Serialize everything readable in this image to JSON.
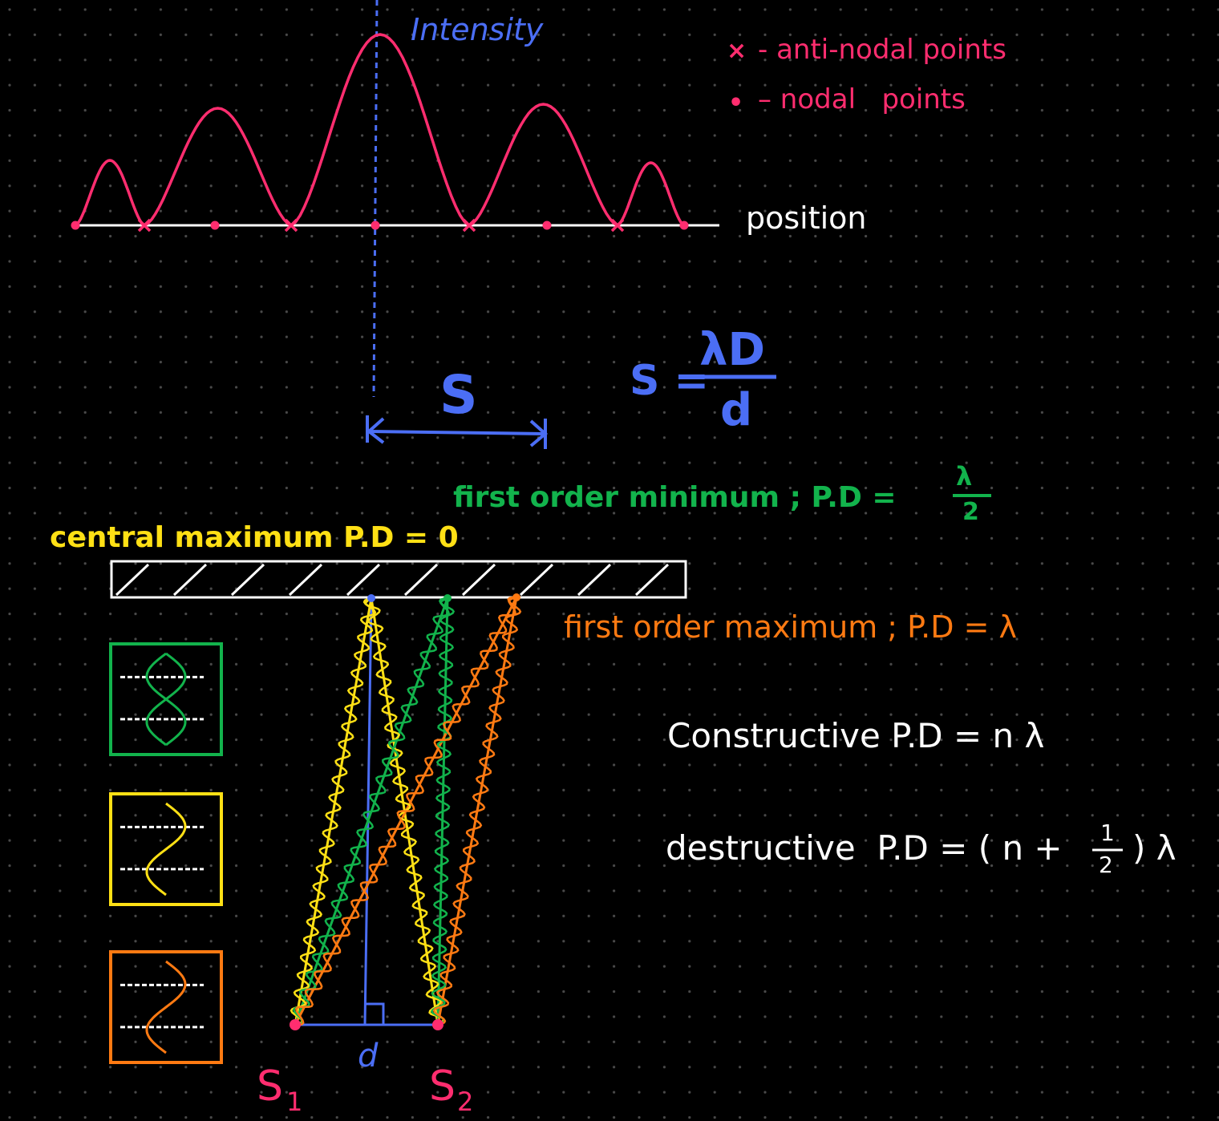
{
  "colors": {
    "background": "#000000",
    "grid_dot": "#4a4a4a",
    "pink": "#ff2d6f",
    "blue": "#4b6ef5",
    "white": "#ffffff",
    "yellow": "#ffe015",
    "green": "#12b34c",
    "orange": "#ff7a12"
  },
  "intensity_graph": {
    "axis_label": "Intensity",
    "position_label": "position",
    "legend": {
      "antinodal_marker": "×",
      "antinodal_text": "- anti-nodal points",
      "nodal_marker": "•",
      "nodal_text": "– nodal   points"
    }
  },
  "fringe_spacing": {
    "symbol": "S",
    "formula_lhs": "S =",
    "formula_numerator": "λD",
    "formula_denominator": "d"
  },
  "labels": {
    "first_order_minimum": "first order minimum ; P.D =",
    "first_order_minimum_num": "λ",
    "first_order_minimum_den": "2",
    "central_maximum": "central maximum P.D = 0",
    "first_order_maximum": "first order maximum ; P.D = λ",
    "constructive": "Constructive P.D = n λ",
    "destructive_prefix": "destructive  P.D = ( n +",
    "destructive_num": "1",
    "destructive_den": "2",
    "destructive_suffix": ") λ",
    "source1": "S",
    "source1_sub": "1",
    "source2": "S",
    "source2_sub": "2",
    "slit_separation": "d"
  },
  "phase_boxes": [
    {
      "name": "green-phase-box",
      "color": "green",
      "phase": "antiphase"
    },
    {
      "name": "yellow-phase-box",
      "color": "yellow",
      "phase": "in-phase"
    },
    {
      "name": "orange-phase-box",
      "color": "orange",
      "phase": "in-phase"
    }
  ]
}
